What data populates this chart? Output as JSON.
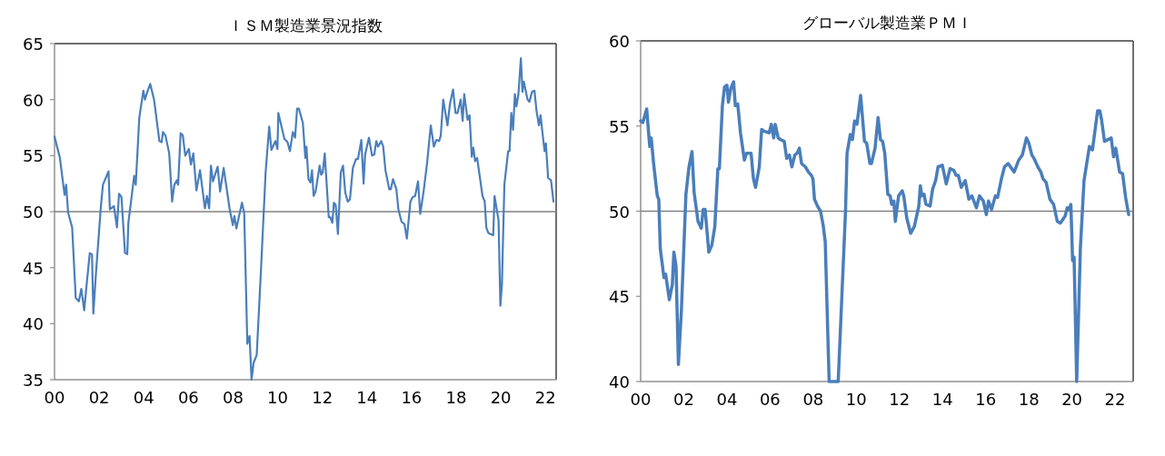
{
  "chart_data": [
    {
      "type": "line",
      "title": "ＩＳＭ製造業景況指数",
      "color": "#4a7ebb",
      "xlim": [
        2000,
        2022.48
      ],
      "ylim": [
        35,
        65
      ],
      "xticks": [
        {
          "value": 2000,
          "label": "00"
        },
        {
          "value": 2002,
          "label": "02"
        },
        {
          "value": 2004,
          "label": "04"
        },
        {
          "value": 2006,
          "label": "06"
        },
        {
          "value": 2008,
          "label": "08"
        },
        {
          "value": 2010,
          "label": "10"
        },
        {
          "value": 2012,
          "label": "12"
        },
        {
          "value": 2014,
          "label": "14"
        },
        {
          "value": 2016,
          "label": "16"
        },
        {
          "value": 2018,
          "label": "18"
        },
        {
          "value": 2020,
          "label": "20"
        },
        {
          "value": 2022,
          "label": "22"
        }
      ],
      "yticks": [
        35,
        40,
        45,
        50,
        55,
        60,
        65
      ],
      "ref_lines": [
        {
          "axis": "y",
          "value": 50,
          "color": "#808080"
        }
      ],
      "x": [
        2000.0,
        2000.24,
        2000.45,
        2000.52,
        2000.61,
        2000.79,
        2000.95,
        2001.09,
        2001.2,
        2001.33,
        2001.43,
        2001.58,
        2001.68,
        2001.74,
        2001.85,
        2002.08,
        2002.17,
        2002.42,
        2002.48,
        2002.66,
        2002.8,
        2002.89,
        2003.0,
        2003.16,
        2003.26,
        2003.31,
        2003.57,
        2003.64,
        2003.8,
        2003.98,
        2004.05,
        2004.16,
        2004.29,
        2004.46,
        2004.7,
        2004.8,
        2004.86,
        2004.97,
        2005.14,
        2005.27,
        2005.37,
        2005.48,
        2005.54,
        2005.65,
        2005.75,
        2005.86,
        2006.02,
        2006.11,
        2006.22,
        2006.36,
        2006.52,
        2006.74,
        2006.83,
        2006.93,
        2007.01,
        2007.1,
        2007.31,
        2007.42,
        2007.58,
        2007.85,
        2007.99,
        2008.06,
        2008.15,
        2008.4,
        2008.5,
        2008.64,
        2008.74,
        2008.83,
        2008.92,
        2009.06,
        2009.24,
        2009.46,
        2009.62,
        2009.72,
        2009.9,
        2009.99,
        2010.03,
        2010.3,
        2010.44,
        2010.55,
        2010.68,
        2010.78,
        2010.87,
        2010.95,
        2011.13,
        2011.24,
        2011.29,
        2011.38,
        2011.47,
        2011.54,
        2011.61,
        2011.7,
        2011.88,
        2011.95,
        2012.02,
        2012.11,
        2012.29,
        2012.36,
        2012.45,
        2012.52,
        2012.6,
        2012.7,
        2012.83,
        2012.93,
        2013.03,
        2013.14,
        2013.24,
        2013.37,
        2013.51,
        2013.6,
        2013.75,
        2013.85,
        2013.92,
        2014.09,
        2014.23,
        2014.33,
        2014.42,
        2014.5,
        2014.64,
        2014.73,
        2014.83,
        2015.0,
        2015.07,
        2015.17,
        2015.32,
        2015.41,
        2015.55,
        2015.68,
        2015.79,
        2015.95,
        2016.05,
        2016.16,
        2016.29,
        2016.39,
        2016.54,
        2016.7,
        2016.86,
        2017.0,
        2017.11,
        2017.24,
        2017.31,
        2017.42,
        2017.61,
        2017.72,
        2017.86,
        2017.97,
        2018.06,
        2018.2,
        2018.29,
        2018.36,
        2018.51,
        2018.6,
        2018.7,
        2018.77,
        2018.85,
        2018.94,
        2019.18,
        2019.28,
        2019.35,
        2019.44,
        2019.66,
        2019.72,
        2019.9,
        2019.98,
        2020.05,
        2020.16,
        2020.33,
        2020.39,
        2020.47,
        2020.55,
        2020.63,
        2020.7,
        2020.79,
        2020.9,
        2020.97,
        2021.03,
        2021.2,
        2021.28,
        2021.4,
        2021.51,
        2021.6,
        2021.71,
        2021.78,
        2021.96,
        2022.02,
        2022.12,
        2022.25,
        2022.36
      ],
      "values": [
        56.7,
        54.8,
        51.5,
        52.4,
        49.9,
        48.6,
        42.3,
        42.0,
        43.1,
        41.2,
        43.3,
        46.3,
        46.2,
        40.9,
        44.3,
        50.5,
        52.4,
        53.6,
        50.2,
        50.5,
        48.6,
        51.6,
        51.3,
        46.3,
        46.2,
        49.0,
        53.2,
        52.4,
        58.4,
        60.8,
        60.0,
        60.7,
        61.4,
        60.0,
        56.3,
        56.2,
        57.1,
        56.8,
        55.2,
        50.9,
        52.4,
        52.8,
        52.4,
        57.0,
        56.8,
        55.0,
        55.6,
        54.2,
        55.2,
        51.9,
        53.7,
        50.3,
        51.4,
        50.3,
        54.1,
        52.7,
        54.0,
        51.8,
        53.9,
        50.2,
        48.8,
        49.6,
        48.5,
        50.8,
        49.9,
        38.2,
        38.9,
        35.0,
        36.5,
        37.2,
        44.3,
        53.5,
        57.6,
        55.5,
        56.3,
        55.6,
        58.8,
        56.5,
        56.2,
        55.4,
        57.1,
        56.6,
        59.2,
        59.2,
        57.9,
        54.8,
        55.8,
        52.9,
        52.6,
        53.7,
        51.4,
        51.8,
        54.1,
        53.3,
        53.5,
        55.2,
        49.5,
        49.5,
        49.0,
        50.8,
        50.6,
        48.0,
        53.5,
        54.1,
        51.7,
        50.9,
        51.1,
        53.9,
        54.7,
        54.7,
        56.4,
        52.5,
        55.1,
        56.6,
        55.0,
        55.1,
        56.3,
        55.8,
        56.3,
        55.8,
        53.7,
        52.0,
        52.0,
        52.9,
        52.0,
        50.2,
        49.1,
        48.9,
        47.6,
        50.9,
        51.3,
        51.4,
        52.7,
        49.8,
        51.8,
        54.4,
        57.7,
        55.8,
        56.4,
        56.3,
        56.8,
        60.0,
        57.7,
        59.6,
        60.9,
        58.8,
        58.8,
        60.0,
        58.1,
        60.5,
        58.2,
        58.6,
        54.9,
        55.7,
        54.5,
        54.8,
        51.4,
        50.9,
        48.6,
        48.1,
        47.9,
        51.4,
        49.2,
        41.6,
        43.5,
        52.4,
        55.4,
        55.4,
        58.8,
        57.3,
        60.5,
        59.4,
        60.5,
        63.7,
        60.7,
        61.6,
        60.0,
        59.8,
        60.7,
        60.8,
        59.0,
        57.7,
        58.6,
        55.4,
        56.1,
        53.0,
        52.8,
        50.9
      ]
    },
    {
      "type": "line",
      "title": "グローバル製造業ＰＭＩ",
      "color": "#4a7ebb",
      "xlim": [
        2000,
        2022.84
      ],
      "ylim": [
        40,
        60
      ],
      "xticks": [
        {
          "value": 2000,
          "label": "00"
        },
        {
          "value": 2002,
          "label": "02"
        },
        {
          "value": 2004,
          "label": "04"
        },
        {
          "value": 2006,
          "label": "06"
        },
        {
          "value": 2008,
          "label": "08"
        },
        {
          "value": 2010,
          "label": "10"
        },
        {
          "value": 2012,
          "label": "12"
        },
        {
          "value": 2014,
          "label": "14"
        },
        {
          "value": 2016,
          "label": "16"
        },
        {
          "value": 2018,
          "label": "18"
        },
        {
          "value": 2020,
          "label": "20"
        },
        {
          "value": 2022,
          "label": "22"
        }
      ],
      "yticks": [
        40,
        45,
        50,
        55,
        60
      ],
      "ref_lines": [
        {
          "axis": "y",
          "value": 50,
          "color": "#808080"
        }
      ],
      "x": [
        2000.0,
        2000.1,
        2000.28,
        2000.42,
        2000.49,
        2000.6,
        2000.77,
        2000.84,
        2000.91,
        2001.08,
        2001.16,
        2001.33,
        2001.47,
        2001.54,
        2001.64,
        2001.75,
        2001.89,
        2002.1,
        2002.24,
        2002.38,
        2002.48,
        2002.66,
        2002.81,
        2002.9,
        2002.99,
        2003.16,
        2003.3,
        2003.44,
        2003.58,
        2003.65,
        2003.79,
        2003.89,
        2004.0,
        2004.07,
        2004.18,
        2004.31,
        2004.39,
        2004.5,
        2004.63,
        2004.81,
        2004.91,
        2005.12,
        2005.23,
        2005.33,
        2005.5,
        2005.61,
        2005.72,
        2005.96,
        2006.06,
        2006.17,
        2006.24,
        2006.38,
        2006.49,
        2006.66,
        2006.77,
        2006.9,
        2007.01,
        2007.15,
        2007.25,
        2007.36,
        2007.46,
        2007.64,
        2007.78,
        2007.92,
        2007.99,
        2008.06,
        2008.2,
        2008.34,
        2008.46,
        2008.56,
        2008.74,
        2009.16,
        2009.5,
        2009.57,
        2009.72,
        2009.82,
        2009.92,
        2010.03,
        2010.2,
        2010.38,
        2010.48,
        2010.63,
        2010.7,
        2010.87,
        2011.01,
        2011.12,
        2011.22,
        2011.32,
        2011.46,
        2011.57,
        2011.64,
        2011.74,
        2011.81,
        2011.96,
        2012.13,
        2012.2,
        2012.34,
        2012.52,
        2012.69,
        2012.9,
        2012.97,
        2013.04,
        2013.14,
        2013.23,
        2013.42,
        2013.54,
        2013.68,
        2013.79,
        2013.99,
        2014.17,
        2014.35,
        2014.52,
        2014.63,
        2014.73,
        2014.87,
        2015.05,
        2015.22,
        2015.36,
        2015.57,
        2015.71,
        2015.89,
        2016.03,
        2016.13,
        2016.27,
        2016.45,
        2016.55,
        2016.73,
        2016.87,
        2017.04,
        2017.32,
        2017.53,
        2017.7,
        2017.89,
        2018.0,
        2018.14,
        2018.24,
        2018.42,
        2018.56,
        2018.66,
        2018.8,
        2018.98,
        2019.15,
        2019.32,
        2019.46,
        2019.68,
        2019.78,
        2019.85,
        2019.95,
        2020.03,
        2020.1,
        2020.22,
        2020.39,
        2020.56,
        2020.81,
        2020.95,
        2021.19,
        2021.29,
        2021.37,
        2021.51,
        2021.82,
        2021.93,
        2022.03,
        2022.21,
        2022.35,
        2022.49,
        2022.63
      ],
      "values": [
        55.3,
        55.2,
        56.0,
        53.8,
        54.3,
        52.8,
        50.9,
        50.7,
        47.8,
        46.1,
        46.3,
        44.8,
        45.7,
        47.6,
        46.8,
        41.0,
        44.2,
        51.0,
        52.6,
        53.5,
        51.1,
        49.4,
        49.0,
        50.1,
        50.1,
        47.6,
        48.0,
        49.1,
        52.5,
        52.5,
        56.2,
        57.3,
        57.4,
        56.4,
        57.2,
        57.6,
        56.2,
        56.3,
        54.6,
        53.0,
        53.4,
        53.4,
        51.9,
        51.4,
        52.6,
        54.8,
        54.7,
        54.6,
        55.1,
        54.3,
        55.1,
        54.3,
        54.2,
        54.1,
        53.1,
        53.3,
        52.6,
        53.3,
        53.4,
        53.7,
        52.8,
        52.6,
        52.3,
        52.1,
        51.9,
        50.7,
        50.3,
        50.0,
        49.2,
        48.2,
        40.0,
        40.0,
        50.0,
        53.4,
        54.5,
        54.2,
        55.3,
        55.1,
        56.8,
        54.1,
        54.0,
        52.8,
        52.8,
        53.7,
        55.5,
        54.2,
        54.1,
        53.4,
        51.0,
        50.9,
        50.4,
        50.6,
        49.4,
        50.9,
        51.2,
        50.9,
        49.6,
        48.7,
        49.1,
        50.3,
        51.5,
        50.9,
        51.0,
        50.4,
        50.3,
        51.3,
        51.8,
        52.6,
        52.7,
        51.6,
        52.5,
        52.4,
        52.1,
        52.1,
        51.4,
        51.8,
        50.7,
        50.9,
        50.2,
        50.9,
        50.6,
        49.8,
        50.6,
        50.1,
        50.9,
        50.8,
        51.9,
        52.6,
        52.8,
        52.3,
        53.0,
        53.3,
        54.3,
        54.0,
        53.3,
        53.1,
        52.6,
        52.3,
        51.9,
        51.7,
        50.7,
        50.4,
        49.4,
        49.3,
        49.7,
        50.2,
        50.1,
        50.4,
        47.1,
        47.3,
        40.0,
        47.8,
        51.8,
        53.8,
        53.6,
        55.9,
        55.9,
        55.4,
        54.1,
        54.3,
        53.2,
        53.7,
        52.3,
        52.2,
        50.8,
        49.8
      ]
    }
  ]
}
